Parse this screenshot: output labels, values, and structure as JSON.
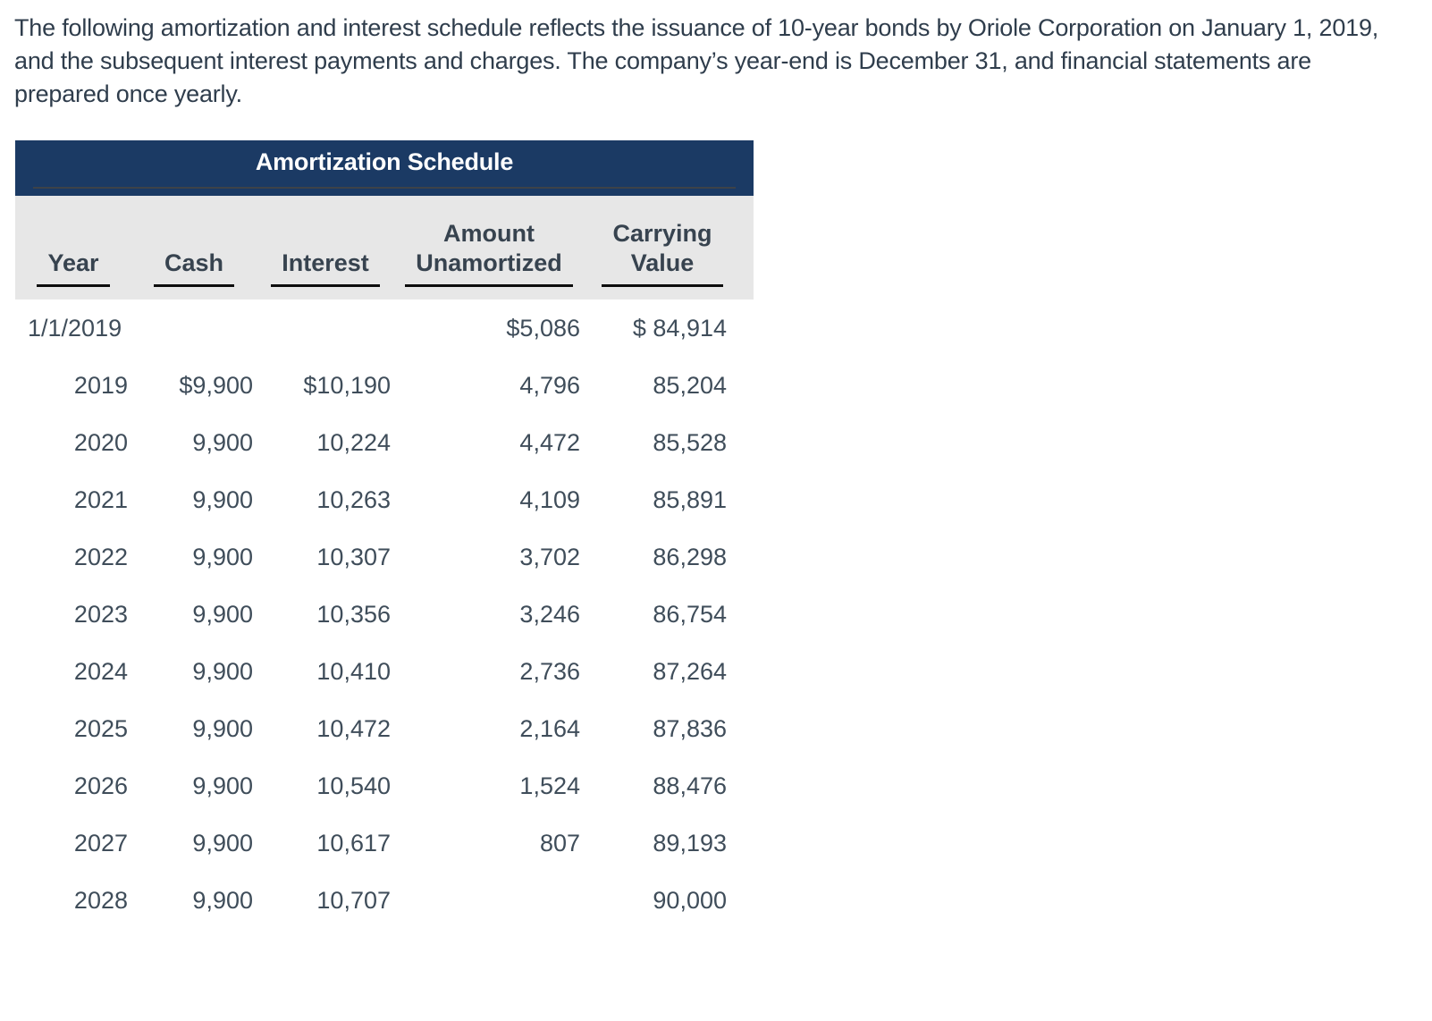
{
  "intro": {
    "text": "The following amortization and interest schedule reflects the issuance of 10-year bonds by Oriole Corporation on January 1, 2019, and the subsequent interest payments and charges. The company’s year-end is December 31, and financial statements are prepared once yearly."
  },
  "table": {
    "title": "Amortization Schedule",
    "columns": [
      {
        "id": "year",
        "lines": [
          "Year"
        ]
      },
      {
        "id": "cash",
        "lines": [
          "Cash"
        ]
      },
      {
        "id": "interest",
        "lines": [
          "Interest"
        ]
      },
      {
        "id": "amount-unamortized",
        "lines": [
          "Amount",
          "Unamortized"
        ]
      },
      {
        "id": "carrying-value",
        "lines": [
          "Carrying",
          "Value"
        ]
      }
    ],
    "rows": [
      {
        "cells": [
          "1/1/2019",
          "",
          "",
          "$5,086",
          "$ 84,914"
        ]
      },
      {
        "cells": [
          "2019",
          "$9,900",
          "$10,190",
          "4,796",
          "85,204"
        ]
      },
      {
        "cells": [
          "2020",
          "9,900",
          "10,224",
          "4,472",
          "85,528"
        ]
      },
      {
        "cells": [
          "2021",
          "9,900",
          "10,263",
          "4,109",
          "85,891"
        ]
      },
      {
        "cells": [
          "2022",
          "9,900",
          "10,307",
          "3,702",
          "86,298"
        ]
      },
      {
        "cells": [
          "2023",
          "9,900",
          "10,356",
          "3,246",
          "86,754"
        ]
      },
      {
        "cells": [
          "2024",
          "9,900",
          "10,410",
          "2,736",
          "87,264"
        ]
      },
      {
        "cells": [
          "2025",
          "9,900",
          "10,472",
          "2,164",
          "87,836"
        ]
      },
      {
        "cells": [
          "2026",
          "9,900",
          "10,540",
          "1,524",
          "88,476"
        ]
      },
      {
        "cells": [
          "2027",
          "9,900",
          "10,617",
          "807",
          "89,193"
        ]
      },
      {
        "cells": [
          "2028",
          "9,900",
          "10,707",
          "",
          "90,000"
        ]
      }
    ]
  },
  "colors": {
    "title_band_navy": "#1b3a64",
    "header_row_gray": "#e7e7e7",
    "body_text": "#3f4d5a",
    "intro_text": "#2f3d4c"
  }
}
